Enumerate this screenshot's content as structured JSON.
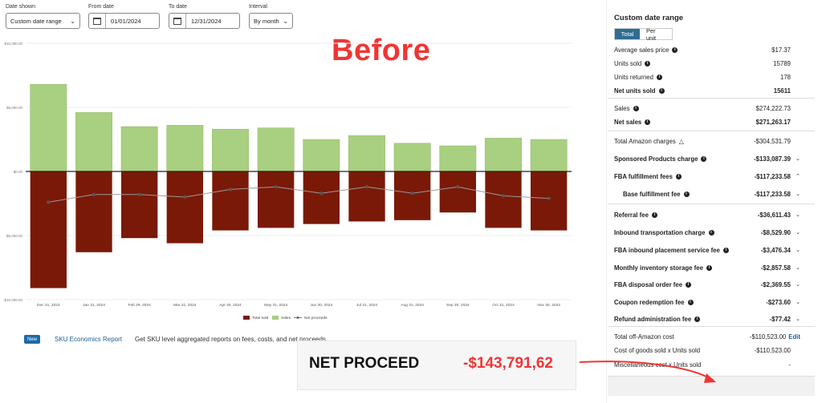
{
  "filters": {
    "date_shown_label": "Date shown",
    "date_shown_value": "Custom date range",
    "from_label": "From date",
    "from_value": "01/01/2024",
    "to_label": "To date",
    "to_value": "12/31/2024",
    "interval_label": "Interval",
    "interval_value": "By month"
  },
  "overlay_title": "Before",
  "chart_data": {
    "type": "bar",
    "categories": [
      "Dec 31, 2023",
      "Jan 31, 2024",
      "Feb 29, 2024",
      "Mar 31, 2024",
      "Apr 30, 2024",
      "May 31, 2024",
      "Jun 30, 2024",
      "Jul 31, 2024",
      "Aug 31, 2024",
      "Sep 30, 2024",
      "Oct 31, 2024",
      "Nov 30, 2024"
    ],
    "y_ticks": [
      "$10,000.00",
      "$5,000.00",
      "$0.00",
      "-$5,000.00",
      "-$10,000.00"
    ],
    "ylim": [
      -10000,
      10000
    ],
    "series": [
      {
        "name": "Total sold",
        "color": "#7a1908",
        "values": [
          -9100,
          -6300,
          -5200,
          -5600,
          -4600,
          -4400,
          -4100,
          -3900,
          -3800,
          -3200,
          -4400,
          -4600
        ]
      },
      {
        "name": "Sales",
        "color": "#a9cf80",
        "values": [
          6800,
          4600,
          3500,
          3600,
          3300,
          3400,
          2500,
          2800,
          2200,
          2000,
          2600,
          2500
        ]
      },
      {
        "name": "Net proceeds",
        "color": "#555555",
        "values": [
          -2400,
          -1800,
          -1800,
          -2000,
          -1400,
          -1200,
          -1700,
          -1200,
          -1700,
          -1200,
          -1900,
          -2100
        ]
      }
    ],
    "legend": [
      "Total sold",
      "Sales",
      "Net proceeds"
    ],
    "legend_position": "bottom"
  },
  "bottom": {
    "new_badge": "New",
    "sku_link": "SKU Economics Report",
    "sku_desc": "Get SKU level aggregated reports on fees, costs, and net proceeds"
  },
  "panel": {
    "title": "Custom date range",
    "toggle_total": "Total",
    "toggle_per_unit": "Per unit",
    "rows": [
      {
        "label": "Average sales price",
        "value": "$17.37",
        "info": true
      },
      {
        "label": "Units sold",
        "value": "15789",
        "info": true
      },
      {
        "label": "Units returned",
        "value": "178",
        "info": true
      },
      {
        "label": "Net units sold",
        "value": "15611",
        "info": true
      },
      {
        "label": "Sales",
        "value": "$274,222.73",
        "info": true
      },
      {
        "label": "Net sales",
        "value": "$271,263.17",
        "info": true
      },
      {
        "label": "Total Amazon charges",
        "value": "-$304,531.79"
      },
      {
        "label": "Sponsored Products charge",
        "value": "-$133,087.39"
      },
      {
        "label": "FBA fulfillment fees",
        "value": "-$117,233.58"
      },
      {
        "label": "Base fulfillment fee",
        "value": "-$117,233.58"
      },
      {
        "label": "Referral fee",
        "value": "-$36,611.43"
      },
      {
        "label": "Inbound transportation charge",
        "value": "-$8,529.90"
      },
      {
        "label": "FBA inbound placement service fee",
        "value": "-$3,476.34"
      },
      {
        "label": "Monthly inventory storage fee",
        "value": "-$2,857.58"
      },
      {
        "label": "FBA disposal order fee",
        "value": "-$2,369.55"
      },
      {
        "label": "Coupon redemption fee",
        "value": "-$273.60"
      },
      {
        "label": "Refund administration fee",
        "value": "-$77.42"
      },
      {
        "label": "Total off-Amazon cost",
        "value": "-$110,523.00"
      },
      {
        "label": "Cost of goods sold x Units sold",
        "value": "-$110,523.00"
      },
      {
        "label": "Miscellaneous cost x Units sold",
        "value": "-"
      },
      {
        "label": "Net proceeds",
        "value": "-$143,791.62"
      }
    ],
    "edit_label": "Edit"
  },
  "net_proceed_callout": {
    "label": "NET PROCEED",
    "value": "-$143,791,62"
  }
}
